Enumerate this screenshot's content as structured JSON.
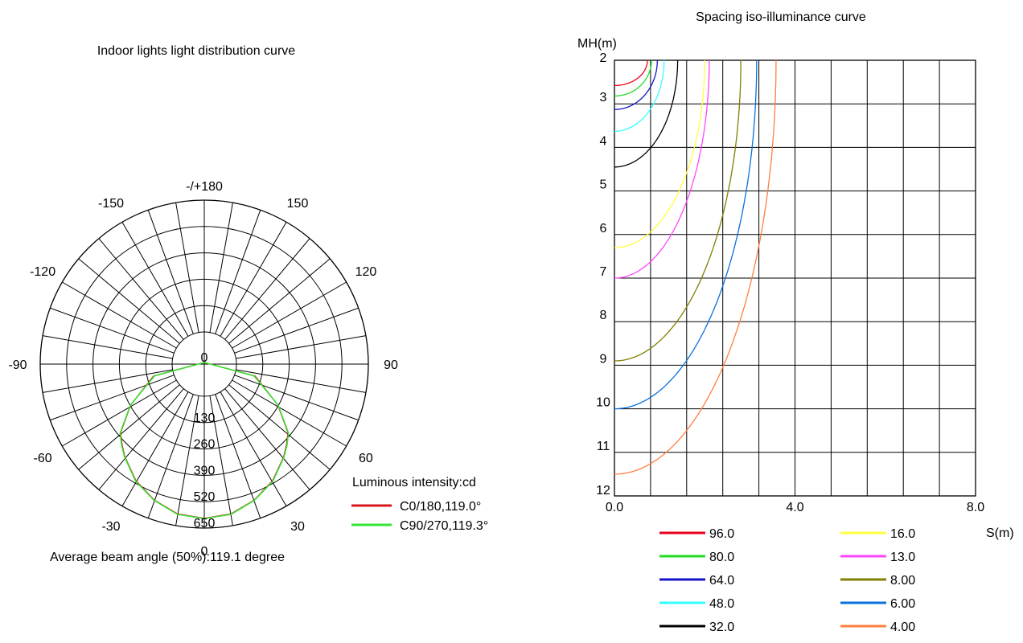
{
  "colors": {
    "background": "#ffffff",
    "grid": "#000000",
    "c0": "#d7191c",
    "c90": "#33e633"
  },
  "chart_data": [
    {
      "type": "polar",
      "title": "Indoor lights light distribution curve",
      "angle_labels": [
        {
          "angle": 180,
          "text": "-/+180"
        },
        {
          "angle": -150,
          "text": "-150"
        },
        {
          "angle": 150,
          "text": "150"
        },
        {
          "angle": -120,
          "text": "-120"
        },
        {
          "angle": 120,
          "text": "120"
        },
        {
          "angle": -90,
          "text": "-90"
        },
        {
          "angle": 90,
          "text": "90"
        },
        {
          "angle": -60,
          "text": "-60"
        },
        {
          "angle": 60,
          "text": "60"
        },
        {
          "angle": -30,
          "text": "-30"
        },
        {
          "angle": 30,
          "text": "30"
        },
        {
          "angle": 0,
          "text": "0"
        }
      ],
      "radial_ticks": [
        0,
        130,
        260,
        390,
        520,
        650
      ],
      "radial_range": [
        0,
        650
      ],
      "legend_title": "Luminous intensity:cd",
      "legend": [
        {
          "label": "C0/180,119.0°",
          "color": "#d7191c"
        },
        {
          "label": "C90/270,119.3°",
          "color": "#33e633"
        }
      ],
      "series": [
        {
          "name": "C0/180,119.0°",
          "color": "#d7191c",
          "angles": [
            -90,
            -75,
            -60,
            -50,
            -45,
            -40,
            -30,
            -20,
            -10,
            0,
            10,
            20,
            30,
            40,
            45,
            50,
            60,
            75,
            90
          ],
          "values": [
            0,
            100,
            260,
            380,
            415,
            450,
            515,
            563,
            600,
            610,
            600,
            563,
            515,
            450,
            415,
            380,
            260,
            100,
            0
          ]
        },
        {
          "name": "C90/270,119.3°",
          "color": "#33e633",
          "angles": [
            -90,
            -75,
            -60,
            -50,
            -45,
            -40,
            -30,
            -20,
            -10,
            0,
            10,
            20,
            30,
            40,
            45,
            50,
            60,
            75,
            90
          ],
          "values": [
            0,
            95,
            262,
            383,
            418,
            452,
            518,
            565,
            602,
            611,
            602,
            565,
            518,
            452,
            418,
            383,
            262,
            95,
            0
          ]
        }
      ],
      "note": "Average beam angle (50%):119.1 degree"
    },
    {
      "type": "line",
      "title": "Spacing iso-illuminance curve",
      "ylabel": "MH(m)",
      "xlabel": "S(m)",
      "xlim": [
        0,
        8
      ],
      "ylim": [
        2,
        12
      ],
      "x_tick_labels": [
        "0.0",
        "4.0",
        "8.0"
      ],
      "x_tick_values": [
        0,
        4,
        8
      ],
      "y_ticks": [
        2,
        3,
        4,
        5,
        6,
        7,
        8,
        9,
        10,
        11,
        12
      ],
      "grid_columns": 10,
      "grid": true,
      "series": [
        {
          "name": "96.0",
          "color": "#e8001c",
          "a": 0.73,
          "b": 0.58
        },
        {
          "name": "80.0",
          "color": "#22dd22",
          "a": 0.82,
          "b": 0.82
        },
        {
          "name": "64.0",
          "color": "#1414c8",
          "a": 0.95,
          "b": 1.13
        },
        {
          "name": "48.0",
          "color": "#33ffff",
          "a": 1.1,
          "b": 1.63
        },
        {
          "name": "32.0",
          "color": "#000000",
          "a": 1.4,
          "b": 2.45
        },
        {
          "name": "16.0",
          "color": "#ffff40",
          "a": 2.0,
          "b": 4.3
        },
        {
          "name": "13.0",
          "color": "#ff44ff",
          "a": 2.1,
          "b": 5.0
        },
        {
          "name": "8.00",
          "color": "#7f7f00",
          "a": 2.8,
          "b": 6.9
        },
        {
          "name": "6.00",
          "color": "#0a72dc",
          "a": 3.15,
          "b": 8.0
        },
        {
          "name": "4.00",
          "color": "#ff7f40",
          "a": 3.58,
          "b": 9.5
        }
      ]
    }
  ]
}
